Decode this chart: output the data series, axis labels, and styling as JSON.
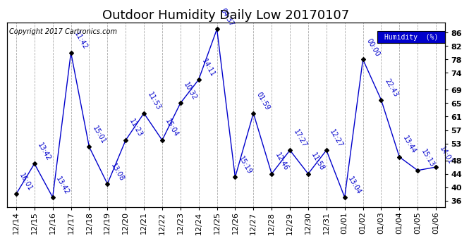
{
  "title": "Outdoor Humidity Daily Low 20170107",
  "copyright": "Copyright 2017 Cartronics.com",
  "legend_label": "Humidity  (%)",
  "line_color": "#0000cc",
  "marker_color": "#000000",
  "dates": [
    "12/14",
    "12/15",
    "12/16",
    "12/17",
    "12/18",
    "12/19",
    "12/20",
    "12/21",
    "12/22",
    "12/23",
    "12/24",
    "12/25",
    "12/26",
    "12/27",
    "12/28",
    "12/29",
    "12/30",
    "12/31",
    "01/01",
    "01/02",
    "01/03",
    "01/04",
    "01/05",
    "01/06"
  ],
  "values": [
    38,
    47,
    37,
    80,
    52,
    41,
    54,
    62,
    54,
    65,
    72,
    87,
    43,
    62,
    44,
    51,
    44,
    51,
    37,
    78,
    66,
    49,
    45,
    46
  ],
  "labels": [
    "16:01",
    "13:42",
    "13:42",
    "11:42",
    "15:01",
    "13:08",
    "11:23",
    "11:53",
    "15:04",
    "10:32",
    "14:11",
    "04:37",
    "15:19",
    "01:59",
    "12:46",
    "17:27",
    "11:58",
    "12:27",
    "13:04",
    "00:00",
    "22:43",
    "13:44",
    "15:13",
    "14:01"
  ],
  "yticks": [
    36,
    40,
    44,
    48,
    53,
    57,
    61,
    65,
    69,
    74,
    78,
    82,
    86
  ],
  "ylim": [
    34,
    89
  ],
  "background_color": "#ffffff",
  "plot_bg_color": "#ffffff",
  "grid_color": "#aaaaaa",
  "legend_bg": "#0000cc",
  "legend_text_color": "#ffffff",
  "title_fontsize": 13,
  "label_fontsize": 7,
  "tick_fontsize": 8,
  "copyright_fontsize": 7
}
